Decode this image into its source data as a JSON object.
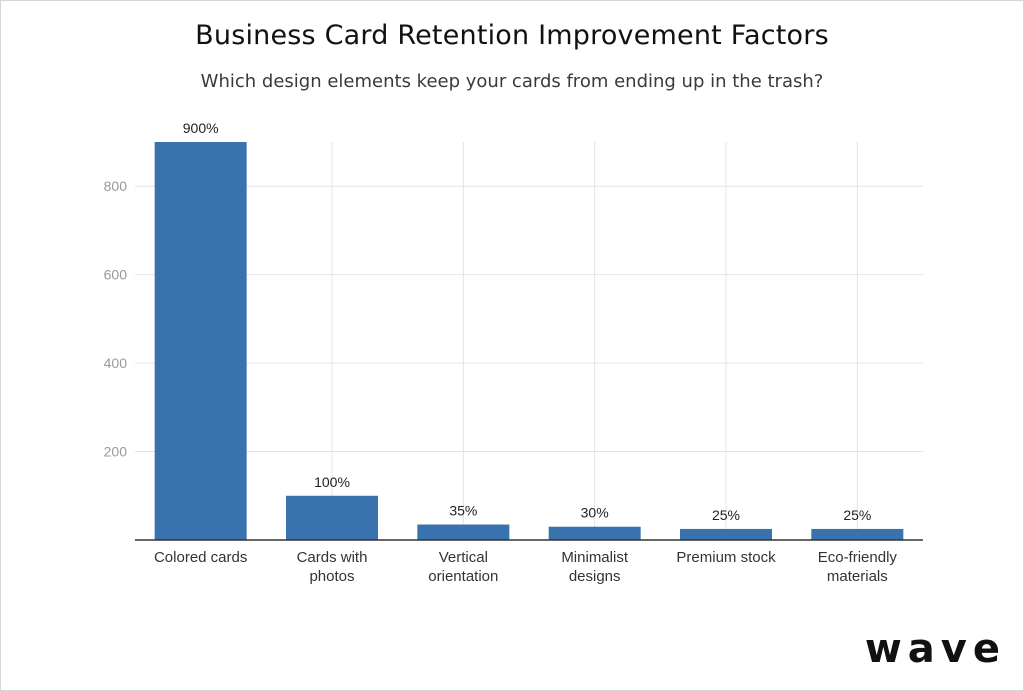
{
  "title": "Business Card Retention Improvement Factors",
  "subtitle": "Which design elements keep your cards from ending up in the trash?",
  "logo": "wave",
  "chart_data": {
    "type": "bar",
    "categories": [
      [
        "Colored cards"
      ],
      [
        "Cards with",
        "photos"
      ],
      [
        "Vertical",
        "orientation"
      ],
      [
        "Minimalist",
        "designs"
      ],
      [
        "Premium stock"
      ],
      [
        "Eco-friendly",
        "materials"
      ]
    ],
    "values": [
      900,
      100,
      35,
      30,
      25,
      25
    ],
    "data_labels": [
      "900%",
      "100%",
      "35%",
      "30%",
      "25%",
      "25%"
    ],
    "yticks": [
      200,
      400,
      600,
      800
    ],
    "ylim": [
      0,
      900
    ],
    "grid": true,
    "bar_color": "#3a72ad"
  }
}
